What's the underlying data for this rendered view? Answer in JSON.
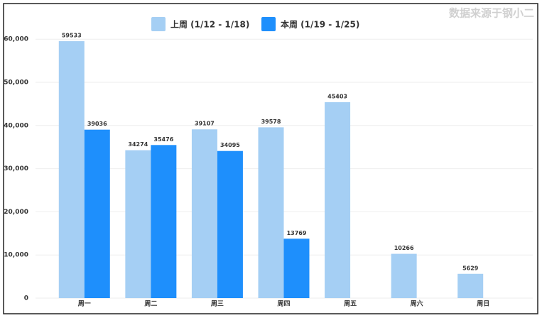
{
  "chart_data": {
    "type": "bar",
    "source": "数据来源于钢小二",
    "categories": [
      "周一",
      "周二",
      "周三",
      "周四",
      "周五",
      "周六",
      "周日"
    ],
    "series": [
      {
        "name": "上周 (1/12 - 1/18)",
        "color": "#a5cff4",
        "values": [
          59533,
          34274,
          39107,
          39578,
          45403,
          10266,
          5629
        ]
      },
      {
        "name": "本周 (1/19 - 1/25)",
        "color": "#1e8ffc",
        "values": [
          39036,
          35476,
          34095,
          13769,
          null,
          null,
          null
        ]
      }
    ],
    "ylim": [
      0,
      62500
    ],
    "yticks": [
      0,
      {
        "value": 10000,
        "label": "10,000"
      },
      {
        "value": 20000,
        "label": "20,000"
      },
      {
        "value": 30000,
        "label": "30,000"
      },
      {
        "value": 40000,
        "label": "40,000"
      },
      {
        "value": 50000,
        "label": "50,000"
      },
      {
        "value": 60000,
        "label": "60,000"
      }
    ],
    "grid": true,
    "legend": "top"
  }
}
